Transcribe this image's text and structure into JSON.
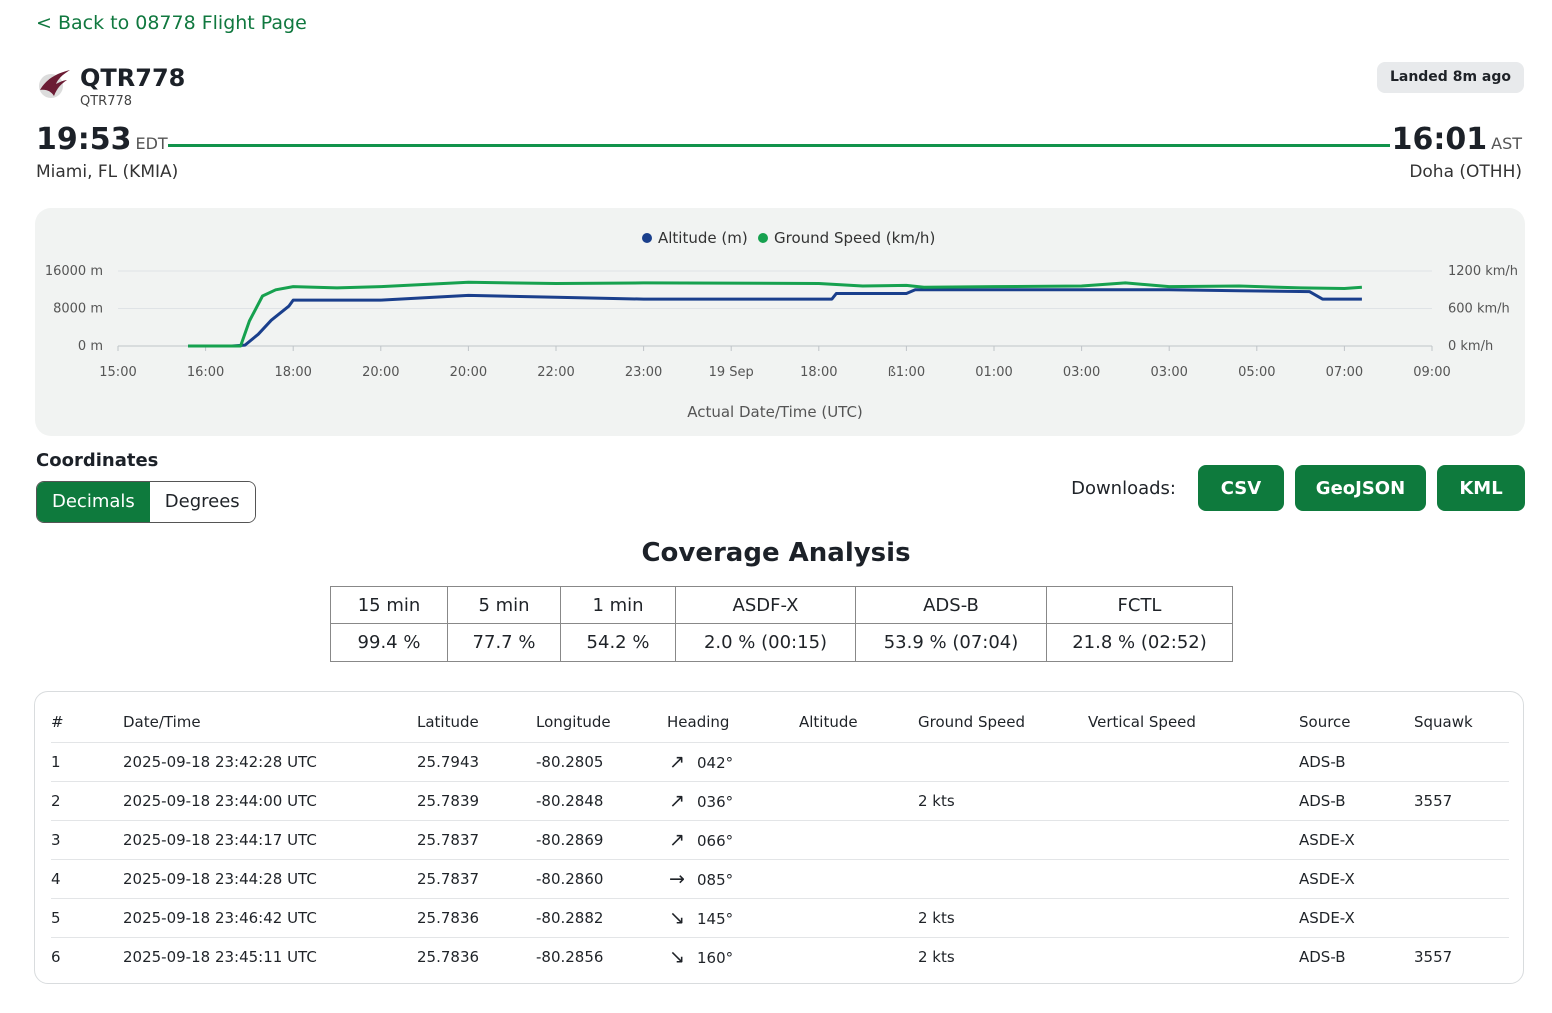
{
  "back_link": "< Back to 08778 Flight Page",
  "flight": {
    "callsign": "QTR778",
    "callsign_sub": "QTR778",
    "status": "Landed 8m ago",
    "departure": {
      "time": "19:53",
      "tz": "EDT",
      "airport": "Miami, FL (KMIA)"
    },
    "arrival": {
      "time": "16:01",
      "tz": "AST",
      "airport": "Doha (OTHH)"
    }
  },
  "colors": {
    "accent": "#0e7a3d",
    "route": "#12934b",
    "altitude": "#1a3f8c",
    "ground_speed": "#16a14f"
  },
  "chart_data": {
    "type": "line",
    "xlabel": "Actual Date/Time (UTC)",
    "x_ticks": [
      "15:00",
      "16:00",
      "18:00",
      "20:00",
      "20:00",
      "22:00",
      "23:00",
      "19 Sep",
      "18:00",
      "ß1:00",
      "01:00",
      "03:00",
      "03:00",
      "05:00",
      "07:00",
      "09:00"
    ],
    "y_left_ticks": [
      "16000 m",
      "8000 m",
      "0 m"
    ],
    "y_right_ticks": [
      "1200 km/h",
      "600 km/h",
      "0 km/h"
    ],
    "y_left_range": [
      0,
      16000
    ],
    "y_right_range": [
      0,
      1200
    ],
    "grid": true,
    "legend_position": "top-center",
    "series": [
      {
        "name": "Altitude (m)",
        "axis": "left",
        "color": "#1a3f8c",
        "points": [
          [
            0.8,
            0
          ],
          [
            1.3,
            0
          ],
          [
            1.45,
            200
          ],
          [
            1.6,
            2500
          ],
          [
            1.75,
            5500
          ],
          [
            1.95,
            8500
          ],
          [
            2.0,
            9800
          ],
          [
            2.3,
            9800
          ],
          [
            3.0,
            9800
          ],
          [
            4.0,
            10800
          ],
          [
            5.0,
            10400
          ],
          [
            6.0,
            10000
          ],
          [
            8.15,
            10000
          ],
          [
            8.2,
            11200
          ],
          [
            9.0,
            11200
          ],
          [
            9.1,
            12000
          ],
          [
            10.0,
            12000
          ],
          [
            11.0,
            12000
          ],
          [
            12.0,
            12000
          ],
          [
            12.8,
            11800
          ],
          [
            13.6,
            11600
          ],
          [
            13.75,
            10000
          ],
          [
            14.2,
            10000
          ]
        ]
      },
      {
        "name": "Ground Speed (km/h)",
        "axis": "right",
        "color": "#16a14f",
        "points": [
          [
            0.8,
            0
          ],
          [
            1.3,
            0
          ],
          [
            1.4,
            0
          ],
          [
            1.5,
            400
          ],
          [
            1.65,
            800
          ],
          [
            1.8,
            900
          ],
          [
            2.0,
            950
          ],
          [
            2.5,
            930
          ],
          [
            3.0,
            950
          ],
          [
            4.0,
            1020
          ],
          [
            5.0,
            1000
          ],
          [
            6.0,
            1010
          ],
          [
            8.0,
            1000
          ],
          [
            8.5,
            960
          ],
          [
            9.0,
            970
          ],
          [
            9.2,
            940
          ],
          [
            10.0,
            950
          ],
          [
            11.0,
            960
          ],
          [
            11.5,
            1010
          ],
          [
            12.0,
            950
          ],
          [
            12.8,
            960
          ],
          [
            13.5,
            930
          ],
          [
            14.0,
            920
          ],
          [
            14.2,
            940
          ]
        ]
      }
    ]
  },
  "coordinates": {
    "title": "Coordinates",
    "modes": [
      "Decimals",
      "Degrees"
    ],
    "active": "Decimals"
  },
  "downloads": {
    "label": "Downloads:",
    "buttons": [
      "CSV",
      "GeoJSON",
      "KML"
    ]
  },
  "coverage": {
    "title": "Coverage Analysis",
    "headers": [
      "15 min",
      "5 min",
      "1 min",
      "ASDF-X",
      "ADS-B",
      "FCTL"
    ],
    "values": [
      "99.4 %",
      "77.7 %",
      "54.2 %",
      "2.0 % (00:15)",
      "53.9 % (07:04)",
      "21.8 % (02:52)"
    ]
  },
  "positions": {
    "headers": [
      "#",
      "Date/Time",
      "Latitude",
      "Longitude",
      "Heading",
      "Altitude",
      "Ground Speed",
      "Vertical Speed",
      "Source",
      "Squawk"
    ],
    "rows": [
      {
        "num": "1",
        "datetime": "2025-09-18 23:42:28 UTC",
        "lat": "25.7943",
        "lon": "-80.2805",
        "arrow": "↗",
        "heading": "042°",
        "altitude": "",
        "ground_speed": "",
        "vertical_speed": "",
        "source": "ADS-B",
        "squawk": ""
      },
      {
        "num": "2",
        "datetime": "2025-09-18 23:44:00 UTC",
        "lat": "25.7839",
        "lon": "-80.2848",
        "arrow": "↗",
        "heading": "036°",
        "altitude": "",
        "ground_speed": "2 kts",
        "vertical_speed": "",
        "source": "ADS-B",
        "squawk": "3557"
      },
      {
        "num": "3",
        "datetime": "2025-09-18 23:44:17 UTC",
        "lat": "25.7837",
        "lon": "-80.2869",
        "arrow": "↗",
        "heading": "066°",
        "altitude": "",
        "ground_speed": "",
        "vertical_speed": "",
        "source": "ASDE-X",
        "squawk": ""
      },
      {
        "num": "4",
        "datetime": "2025-09-18 23:44:28 UTC",
        "lat": "25.7837",
        "lon": "-80.2860",
        "arrow": "→",
        "heading": "085°",
        "altitude": "",
        "ground_speed": "",
        "vertical_speed": "",
        "source": "ASDE-X",
        "squawk": ""
      },
      {
        "num": "5",
        "datetime": "2025-09-18 23:46:42 UTC",
        "lat": "25.7836",
        "lon": "-80.2882",
        "arrow": "↘",
        "heading": "145°",
        "altitude": "",
        "ground_speed": "2 kts",
        "vertical_speed": "",
        "source": "ASDE-X",
        "squawk": ""
      },
      {
        "num": "6",
        "datetime": "2025-09-18 23:45:11 UTC",
        "lat": "25.7836",
        "lon": "-80.2856",
        "arrow": "↘",
        "heading": "160°",
        "altitude": "",
        "ground_speed": "2 kts",
        "vertical_speed": "",
        "source": "ADS-B",
        "squawk": "3557"
      }
    ]
  }
}
